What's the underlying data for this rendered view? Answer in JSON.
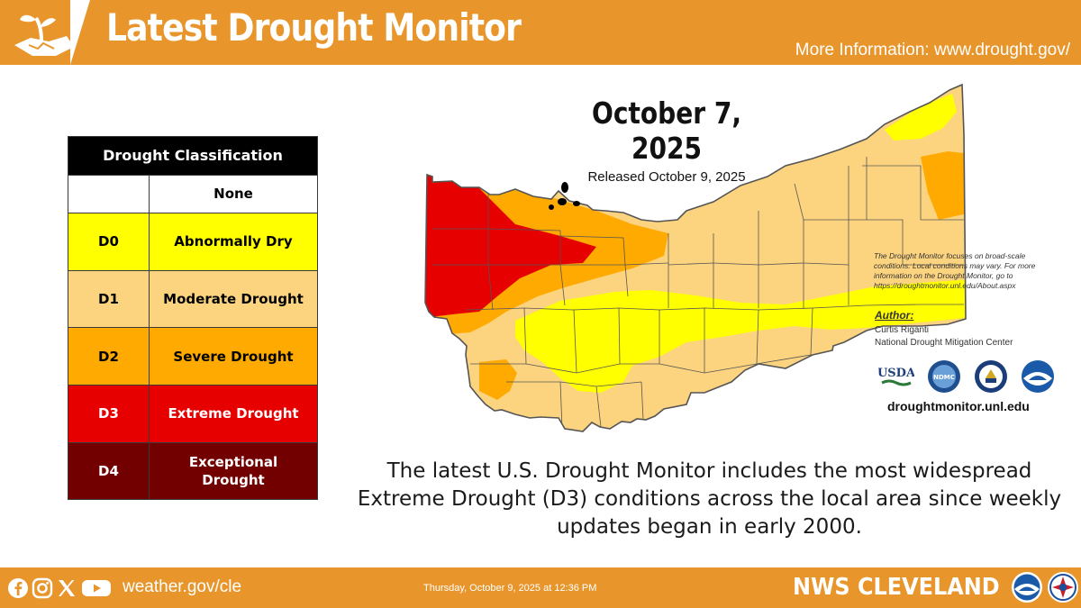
{
  "header": {
    "title": "Latest Drought Monitor",
    "more_info": "More Information: www.drought.gov/"
  },
  "legend": {
    "heading": "Drought Classification",
    "rows": [
      {
        "code": "",
        "label": "None",
        "color": "#ffffff",
        "text_color": "#000000"
      },
      {
        "code": "D0",
        "label": "Abnormally Dry",
        "color": "#ffff00",
        "text_color": "#000000"
      },
      {
        "code": "D1",
        "label": "Moderate Drought",
        "color": "#fcd37f",
        "text_color": "#000000"
      },
      {
        "code": "D2",
        "label": "Severe Drought",
        "color": "#ffaa00",
        "text_color": "#000000"
      },
      {
        "code": "D3",
        "label": "Extreme Drought",
        "color": "#e60000",
        "text_color": "#ffffff"
      },
      {
        "code": "D4",
        "label": "Exceptional Drought",
        "color": "#730000",
        "text_color": "#ffffff"
      }
    ]
  },
  "map": {
    "date": "October 7, 2025",
    "released": "Released October 9, 2025",
    "note": "The Drought Monitor focuses on broad-scale conditions. Local conditions may vary. For more information on the Drought Monitor, go to https://droughtmonitor.unl.edu/About.aspx",
    "author_label": "Author:",
    "author_name": "Curtis Riganti",
    "author_org": "National Drought Mitigation Center",
    "agencies": [
      {
        "name": "USDA",
        "icon": "usda-logo-icon"
      },
      {
        "name": "NDMC",
        "icon": "ndmc-logo-icon"
      },
      {
        "name": "",
        "icon": "doc-seal-icon"
      },
      {
        "name": "NOAA",
        "icon": "noaa-logo-icon"
      }
    ],
    "url": "droughtmonitor.unl.edu"
  },
  "caption": "The latest U.S. Drought Monitor includes the most widespread Extreme Drought (D3) conditions across the local area since weekly updates began in early 2000.",
  "footer": {
    "social_icons": [
      "facebook-icon",
      "instagram-icon",
      "x-icon",
      "youtube-icon"
    ],
    "url": "weather.gov/cle",
    "date": "Thursday, October 9, 2025 at 12:36 PM",
    "brand": "NWS CLEVELAND"
  },
  "colors": {
    "accent": "#e8962c",
    "none": "#ffffff",
    "d0": "#ffff00",
    "d1": "#fcd37f",
    "d2": "#ffaa00",
    "d3": "#e60000",
    "d4": "#730000"
  }
}
